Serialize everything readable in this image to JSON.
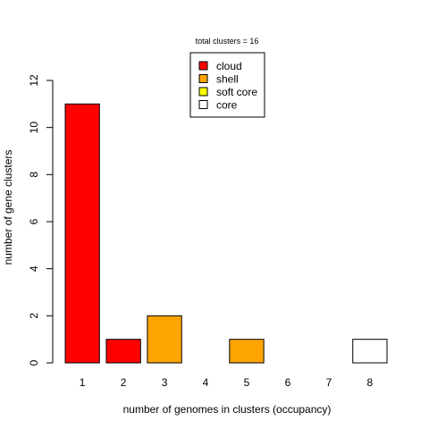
{
  "chart_data": {
    "type": "bar",
    "title": "total clusters = 16",
    "xlabel": "number of genomes in clusters (occupancy)",
    "ylabel": "number of gene clusters",
    "categories": [
      "1",
      "2",
      "3",
      "4",
      "5",
      "6",
      "7",
      "8"
    ],
    "values": [
      11,
      1,
      2,
      0,
      1,
      0,
      0,
      1
    ],
    "bar_classes": [
      "cloud",
      "cloud",
      "shell",
      "shell",
      "shell",
      "shell",
      "shell",
      "core"
    ],
    "ylim": [
      0,
      12
    ],
    "yticks": [
      0,
      2,
      4,
      6,
      8,
      10,
      12
    ],
    "grid": false,
    "legend": {
      "position": "top-center",
      "entries": [
        {
          "label": "cloud",
          "color": "#ff0000"
        },
        {
          "label": "shell",
          "color": "#ffa500"
        },
        {
          "label": "soft core",
          "color": "#ffff00"
        },
        {
          "label": "core",
          "color": "#ffffff"
        }
      ]
    }
  }
}
